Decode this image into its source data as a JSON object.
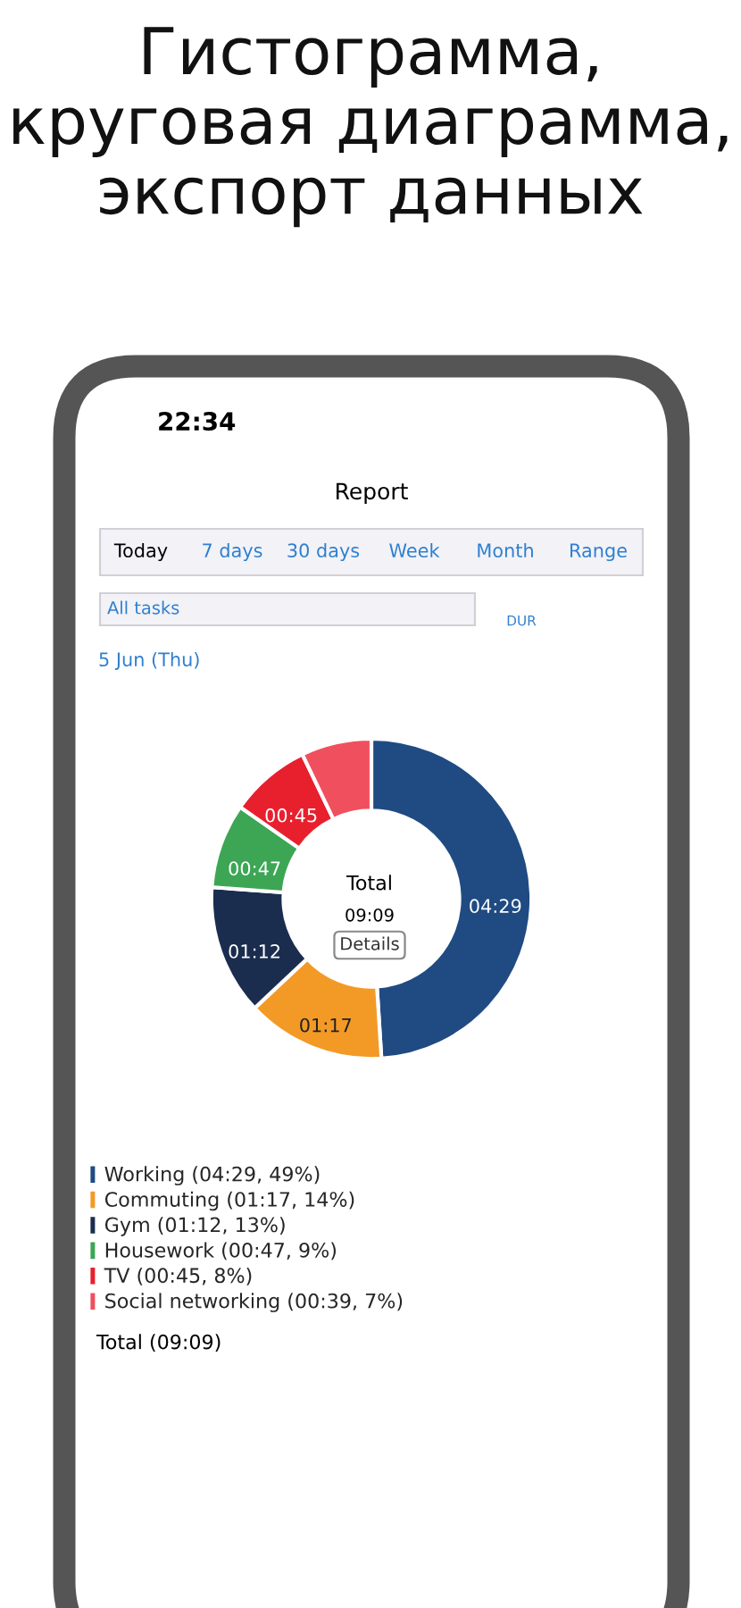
{
  "chart_data": {
    "type": "donut",
    "title": "Гистограмма,\nкруговая диаграмма,\nэкспорт данных",
    "categories": [
      "Working (04:29, 49%)",
      "Commuting (01:17, 14%)",
      "Gym (01:12, 13%)",
      "Housework (00:47, 9%)",
      "TV (00:45, 8%)",
      "Social networking (00:39, 7%)"
    ],
    "values": [
      4.4833,
      1.2833,
      1.2,
      0.7833,
      0.75,
      0.65
    ],
    "colors": [
      "#1f4b82",
      "#f39a26",
      "#1b2d4f",
      "#3ca655",
      "#e8202e",
      "#f04f5e"
    ],
    "value_labels": [
      "04:29",
      "01:17",
      "01:12",
      "00:47",
      "00:45",
      null
    ],
    "legend": "bottom left",
    "annotations": [
      "22:34",
      "Report",
      "Today",
      "7 days",
      "30 days",
      "Week",
      "Month",
      "Range",
      "All tasks",
      "DUR",
      "5 Jun (Thu)",
      "Total",
      "09:09",
      "Details",
      "Total (09:09)"
    ]
  }
}
